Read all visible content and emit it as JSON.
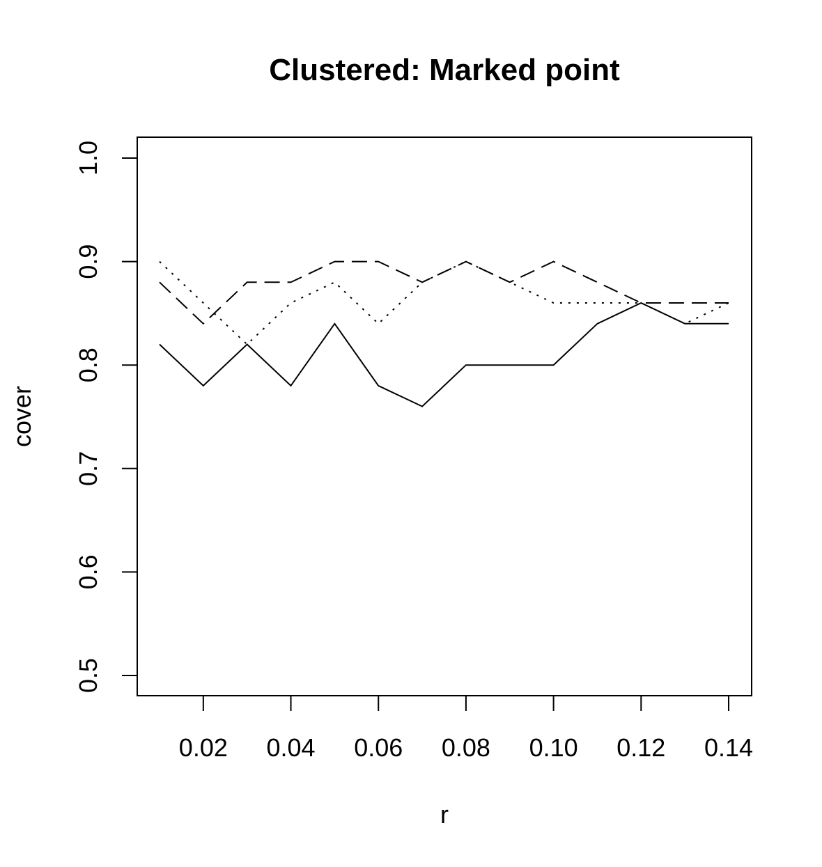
{
  "chart_data": {
    "type": "line",
    "title": "Clustered: Marked point",
    "xlabel": "r",
    "ylabel": "cover",
    "xlim": [
      0.01,
      0.14
    ],
    "ylim": [
      0.5,
      1.0
    ],
    "x_ticks": [
      0.02,
      0.04,
      0.06,
      0.08,
      0.1,
      0.12,
      0.14
    ],
    "x_tick_labels": [
      "0.02",
      "0.04",
      "0.06",
      "0.08",
      "0.10",
      "0.12",
      "0.14"
    ],
    "y_ticks": [
      0.5,
      0.6,
      0.7,
      0.8,
      0.9,
      1.0
    ],
    "y_tick_labels": [
      "0.5",
      "0.6",
      "0.7",
      "0.8",
      "0.9",
      "1.0"
    ],
    "grid": false,
    "legend": "none",
    "x": [
      0.01,
      0.02,
      0.03,
      0.04,
      0.05,
      0.06,
      0.07,
      0.08,
      0.09,
      0.1,
      0.11,
      0.12,
      0.13,
      0.14
    ],
    "series": [
      {
        "line_style": "solid",
        "values": [
          0.82,
          0.78,
          0.82,
          0.78,
          0.84,
          0.78,
          0.76,
          0.8,
          0.8,
          0.8,
          0.84,
          0.86,
          0.84,
          0.84
        ]
      },
      {
        "line_style": "dashed",
        "values": [
          0.88,
          0.84,
          0.88,
          0.88,
          0.9,
          0.9,
          0.88,
          0.9,
          0.88,
          0.9,
          0.88,
          0.86,
          0.86,
          0.86
        ]
      },
      {
        "line_style": "dotted",
        "values": [
          0.9,
          0.86,
          0.82,
          0.86,
          0.88,
          0.84,
          0.88,
          0.9,
          0.88,
          0.86,
          0.86,
          0.86,
          0.84,
          0.86
        ]
      }
    ]
  }
}
